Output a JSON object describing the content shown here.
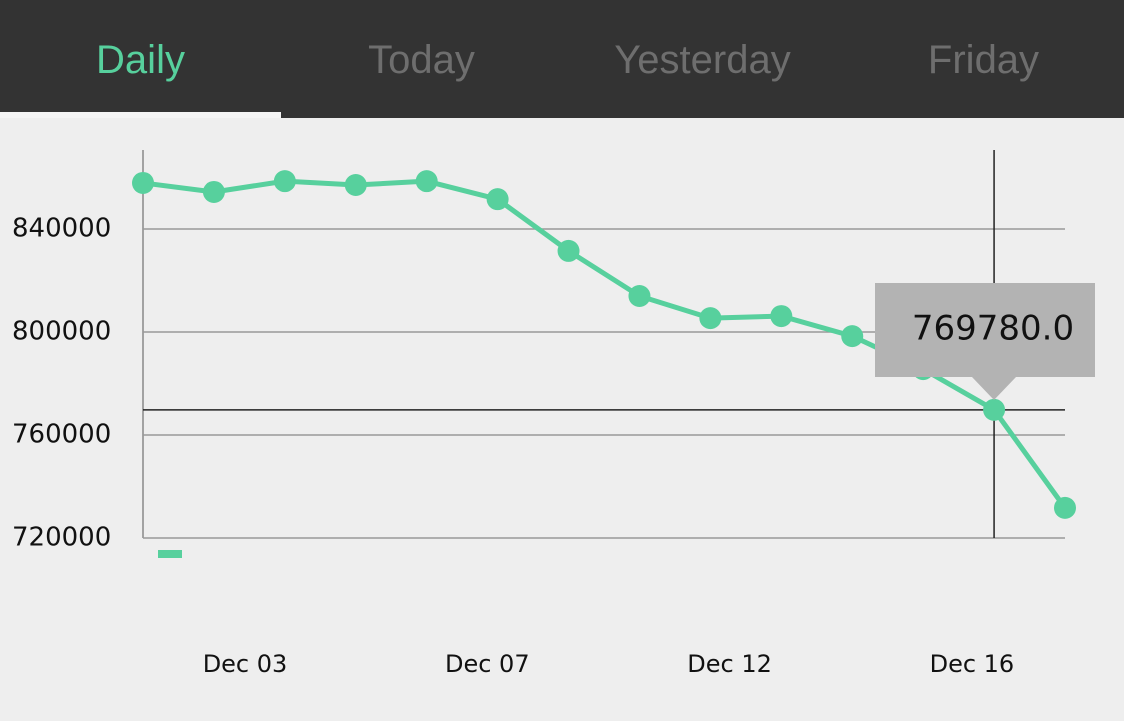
{
  "tabs": [
    {
      "label": "Daily",
      "active": true
    },
    {
      "label": "Today",
      "active": false
    },
    {
      "label": "Yesterday",
      "active": false
    },
    {
      "label": "Friday",
      "active": false
    }
  ],
  "chart_data": {
    "type": "line",
    "series": [
      {
        "color": "#57d09d",
        "values": [
          857900,
          854400,
          858600,
          857100,
          858600,
          851600,
          831500,
          814000,
          805400,
          806200,
          798400,
          785600,
          769780,
          731700
        ]
      }
    ],
    "xticks": [
      "Dec 03",
      "Dec 07",
      "Dec 12",
      "Dec 16"
    ],
    "ylim": [
      720000,
      870700
    ],
    "yticks": [
      720000,
      760000,
      800000,
      840000
    ],
    "grid": true,
    "tooltip": {
      "index": 12,
      "value": 769780,
      "label": "769780.0"
    }
  }
}
